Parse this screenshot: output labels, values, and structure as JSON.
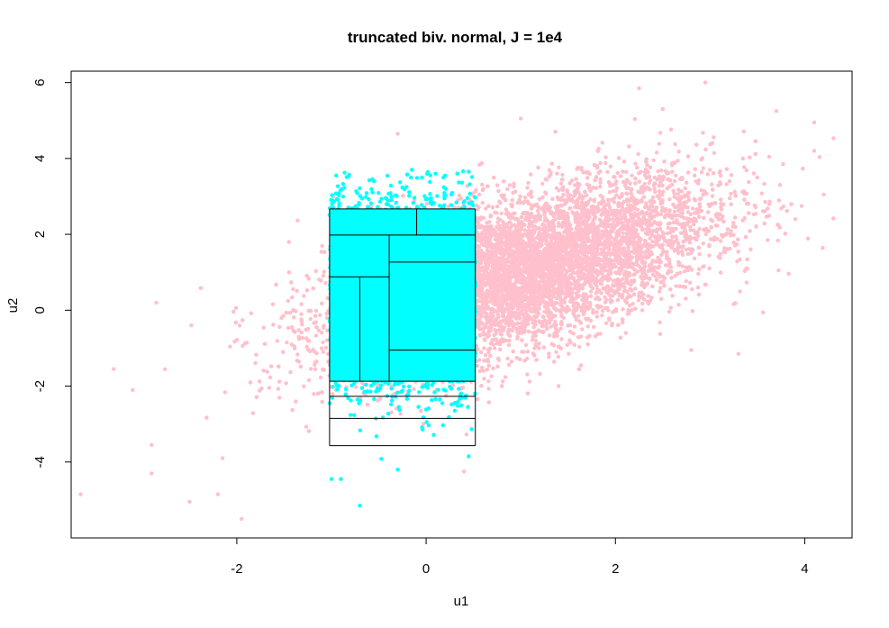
{
  "chart_data": {
    "type": "scatter",
    "title": "truncated biv. normal, J = 1e4",
    "xlabel": "u1",
    "ylabel": "u2",
    "xlim": [
      -3.75,
      4.5
    ],
    "ylim": [
      -6.0,
      6.3
    ],
    "xticks": [
      -2,
      0,
      2,
      4
    ],
    "yticks": [
      -4,
      -2,
      0,
      2,
      4,
      6
    ],
    "grid": false,
    "legend": "none",
    "series": [
      {
        "color": "#ffc0cb",
        "distribution": {
          "mean": [
            1,
            1
          ],
          "sd": [
            1,
            1.2
          ],
          "corr": 0.6,
          "n": 10000,
          "draw_order": "first"
        },
        "points": [
          [
            -3.65,
            -4.85
          ],
          [
            -3.3,
            -1.55
          ],
          [
            -3.1,
            -2.1
          ],
          [
            -2.9,
            -3.55
          ],
          [
            -2.9,
            -4.3
          ],
          [
            -2.85,
            0.2
          ],
          [
            -2.5,
            -5.05
          ],
          [
            -2.2,
            -4.85
          ],
          [
            -2.15,
            -3.9
          ],
          [
            -1.95,
            -5.5
          ],
          [
            -1.45,
            1.8
          ],
          [
            4.2,
            3.05
          ],
          [
            4.1,
            4.2
          ],
          [
            4.1,
            4.95
          ],
          [
            3.9,
            2.4
          ],
          [
            3.7,
            5.25
          ],
          [
            2.95,
            6.0
          ],
          [
            2.5,
            5.3
          ],
          [
            2.25,
            5.85
          ],
          [
            1.0,
            5.05
          ],
          [
            -0.3,
            4.65
          ],
          [
            0.4,
            -4.25
          ],
          [
            1.4,
            -2.0
          ],
          [
            2.8,
            -1.05
          ],
          [
            3.3,
            -1.15
          ]
        ]
      },
      {
        "color": "#00ffff",
        "truncation": {
          "u1": [
            -1.02,
            0.52
          ]
        },
        "draw_order": "second",
        "points": [
          [
            -0.7,
            -5.15
          ],
          [
            -1.0,
            -4.45
          ],
          [
            -0.9,
            -4.45
          ],
          [
            -0.3,
            -4.2
          ],
          [
            0.45,
            -3.85
          ],
          [
            -0.15,
            3.7
          ],
          [
            0.1,
            3.6
          ],
          [
            -0.95,
            3.55
          ],
          [
            0.45,
            3.65
          ],
          [
            -0.55,
            3.4
          ]
        ]
      }
    ],
    "partition_lines": {
      "color": "#000000",
      "horizontal": [
        {
          "y": 2.67,
          "x": [
            -1.02,
            0.52
          ]
        },
        {
          "y": 1.98,
          "x": [
            -1.02,
            0.52
          ]
        },
        {
          "y": 1.27,
          "x": [
            -0.39,
            0.52
          ]
        },
        {
          "y": 0.88,
          "x": [
            -1.02,
            -0.39
          ]
        },
        {
          "y": -1.05,
          "x": [
            -0.39,
            0.52
          ]
        },
        {
          "y": -1.87,
          "x": [
            -1.02,
            0.52
          ]
        },
        {
          "y": -2.27,
          "x": [
            -1.02,
            0.52
          ]
        },
        {
          "y": -2.85,
          "x": [
            -1.02,
            0.52
          ]
        },
        {
          "y": -3.57,
          "x": [
            -1.02,
            0.52
          ]
        }
      ],
      "vertical": [
        {
          "x": -1.02,
          "y": [
            -3.57,
            2.67
          ]
        },
        {
          "x": 0.52,
          "y": [
            -3.57,
            2.67
          ]
        },
        {
          "x": -0.39,
          "y": [
            -1.87,
            1.98
          ]
        },
        {
          "x": -0.7,
          "y": [
            -1.87,
            0.88
          ]
        },
        {
          "x": -0.1,
          "y": [
            1.98,
            2.67
          ]
        }
      ]
    }
  }
}
